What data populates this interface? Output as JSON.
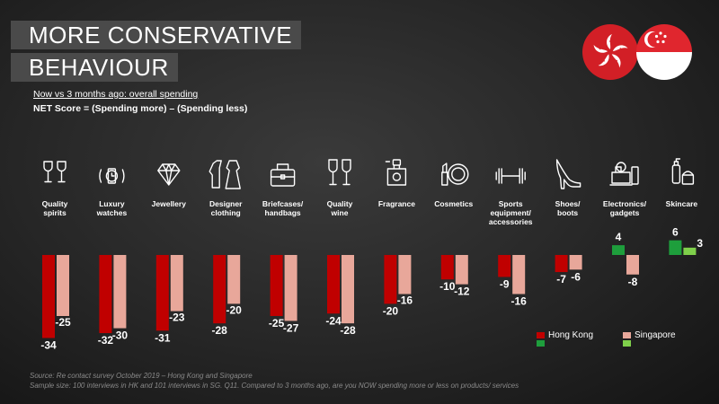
{
  "header": {
    "title_line1": "MORE CONSERVATIVE",
    "title_line2": "BEHAVIOUR",
    "subtitle": "Now vs 3 months ago:  overall spending",
    "net_score": "NET Score = (Spending more) – (Spending less)"
  },
  "flags": [
    "Hong Kong",
    "Singapore"
  ],
  "chart_data": {
    "type": "bar",
    "title": "",
    "xlabel": "",
    "ylabel": "",
    "legend_position": "bottom-right",
    "categories": [
      [
        "Quality",
        "spirits"
      ],
      [
        "Luxury",
        "watches"
      ],
      [
        "Jewellery"
      ],
      [
        "Designer",
        "clothing"
      ],
      [
        "Briefcases/",
        "handbags"
      ],
      [
        "Quality",
        "wine"
      ],
      [
        "Fragrance"
      ],
      [
        "Cosmetics"
      ],
      [
        "Sports",
        "equipment/",
        "accessories"
      ],
      [
        "Shoes/",
        "boots"
      ],
      [
        "Electronics/",
        "gadgets"
      ],
      [
        "Skincare"
      ]
    ],
    "category_icons": [
      "glasses-icon",
      "watch-icon",
      "diamond-icon",
      "clothing-icon",
      "bag-icon",
      "wine-icon",
      "perfume-icon",
      "cosmetics-icon",
      "dumbbell-icon",
      "shoe-icon",
      "electronics-icon",
      "skincare-icon"
    ],
    "series": [
      {
        "name": "Hong Kong",
        "values": [
          -34,
          -32,
          -31,
          -28,
          -25,
          -24,
          -20,
          -10,
          -9,
          -7,
          4,
          6
        ],
        "color_negative": "#c00000",
        "color_positive": "#1e9e3c"
      },
      {
        "name": "Singapore",
        "values": [
          -25,
          -30,
          -23,
          -20,
          -27,
          -28,
          -16,
          -12,
          -16,
          -6,
          -8,
          3
        ],
        "color_negative": "#e8a79a",
        "color_positive": "#7fd04b"
      }
    ]
  },
  "footer": {
    "source": "Source: Re contact survey October 2019 – Hong Kong and Singapore",
    "sample": "Sample size: 100 interviews in HK and 101 interviews in SG.  Q11. Compared to 3 months ago, are you NOW spending more or less on products/ services"
  }
}
